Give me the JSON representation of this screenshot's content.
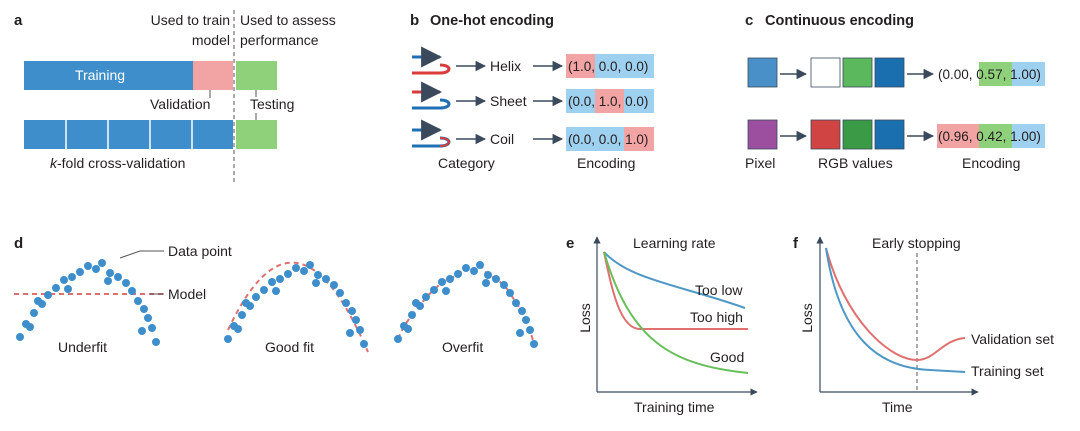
{
  "panel_a": {
    "letter": "a",
    "train_header": [
      "Used to train",
      "model"
    ],
    "assess_header": [
      "Used to assess",
      "performance"
    ],
    "training_label": "Training",
    "validation_label": "Validation",
    "testing_label": "Testing",
    "kfold_italic": "k",
    "kfold_rest": "-fold cross-validation"
  },
  "panel_b": {
    "letter": "b",
    "title": "One-hot encoding",
    "rows": [
      {
        "label": "Helix",
        "values": [
          "1.0",
          "0.0",
          "0.0"
        ],
        "hot": 0
      },
      {
        "label": "Sheet",
        "values": [
          "0.0",
          "1.0",
          "0.0"
        ],
        "hot": 1
      },
      {
        "label": "Coil",
        "values": [
          "0.0",
          "0.0",
          "1.0"
        ],
        "hot": 2
      }
    ],
    "category_label": "Category",
    "encoding_label": "Encoding"
  },
  "panel_c": {
    "letter": "c",
    "title": "Continuous encoding",
    "row1": {
      "pixel_color": "#4a90c8",
      "rgb_colors": [
        "#ffffff",
        "#5cb85c",
        "#1a6faf"
      ],
      "values": [
        "0.00",
        "0.57",
        "1.00"
      ],
      "value_colors": [
        "#ffffff",
        "#8fd17a",
        "#9ed0ef"
      ]
    },
    "row2": {
      "pixel_color": "#9b4f9e",
      "rgb_colors": [
        "#d04444",
        "#3a9a45",
        "#1a6faf"
      ],
      "values": [
        "0.96",
        "0.42",
        "1.00"
      ],
      "value_colors": [
        "#f2a3a3",
        "#8fd17a",
        "#9ed0ef"
      ]
    },
    "pixel_label": "Pixel",
    "rgb_label": "RGB values",
    "encoding_label": "Encoding"
  },
  "panel_d": {
    "letter": "d",
    "data_point_label": "Data point",
    "model_label": "Model",
    "fits": [
      "Underfit",
      "Good fit",
      "Overfit"
    ]
  },
  "panel_e": {
    "letter": "e",
    "title": "Learning rate",
    "ylabel": "Loss",
    "xlabel": "Training time",
    "curves": [
      {
        "name": "Too low",
        "color": "#4f98c6"
      },
      {
        "name": "Too high",
        "color": "#e07070"
      },
      {
        "name": "Good",
        "color": "#68bf5a"
      }
    ]
  },
  "panel_f": {
    "letter": "f",
    "title": "Early stopping",
    "ylabel": "Loss",
    "xlabel": "Time",
    "curves": [
      {
        "name": "Validation set",
        "color": "#e07070"
      },
      {
        "name": "Training set",
        "color": "#4f98c6"
      }
    ]
  },
  "colors": {
    "blue": "#3d8ecb",
    "blue_light": "#9ed0ef",
    "pink": "#f2a3a3",
    "green": "#8fd17a",
    "red": "#d93a3a",
    "dark_blue": "#1f6fb5",
    "arrow": "#3a4a5c"
  }
}
